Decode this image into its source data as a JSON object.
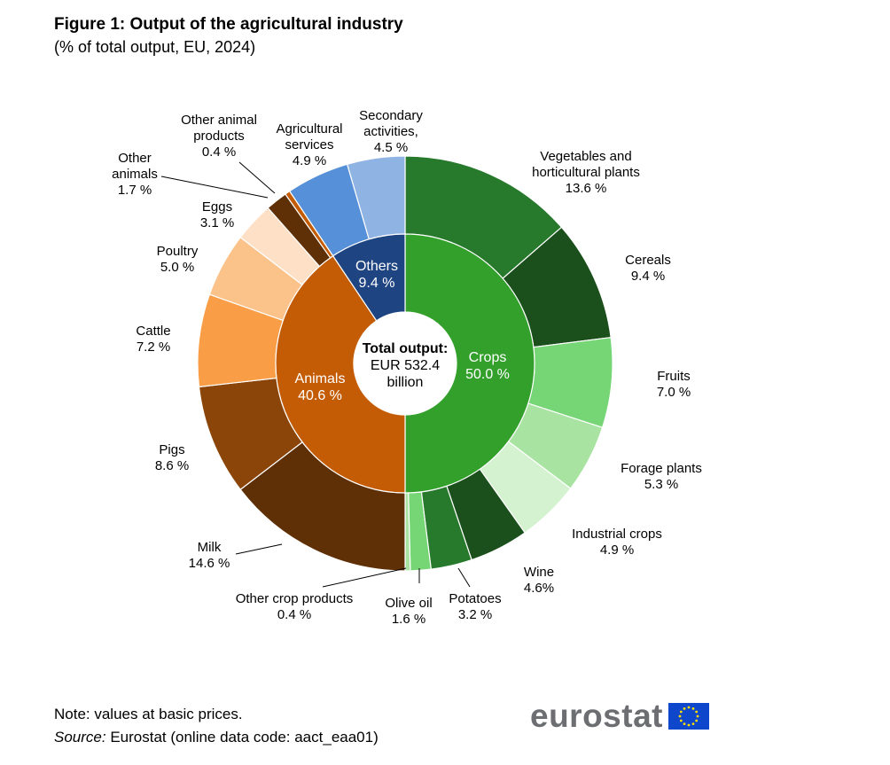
{
  "title": "Figure 1: Output of the agricultural industry",
  "subtitle": "(% of total output, EU, 2024)",
  "note": "Note: values at basic prices.",
  "source_label": "Source:",
  "source_text": " Eurostat (online data code: aact_eaa01)",
  "logo_text": "eurostat",
  "center_label": [
    "Total output:",
    "EUR 532.4",
    "billion"
  ],
  "chart_data": {
    "type": "pie",
    "subtype": "nested-donut",
    "inner": [
      {
        "name": "Crops",
        "value": 50.0,
        "label": [
          "Crops",
          "50.0 %"
        ],
        "color": "#33a02c"
      },
      {
        "name": "Animals",
        "value": 40.6,
        "label": [
          "Animals",
          "40.6 %"
        ],
        "color": "#c45c06"
      },
      {
        "name": "Others",
        "value": 9.4,
        "label": [
          "Others",
          "9.4 %"
        ],
        "color": "#1f4482"
      }
    ],
    "outer": [
      {
        "name": "Vegetables and horticultural plants",
        "value": 13.6,
        "label": [
          "Vegetables and",
          "horticultural  plants",
          "13.6 %"
        ],
        "color": "#27792c"
      },
      {
        "name": "Cereals",
        "value": 9.4,
        "label": [
          "Cereals",
          "9.4 %"
        ],
        "color": "#1b4f1c"
      },
      {
        "name": "Fruits",
        "value": 7.0,
        "label": [
          "Fruits",
          "7.0 %"
        ],
        "color": "#76d575"
      },
      {
        "name": "Forage plants",
        "value": 5.3,
        "label": [
          "Forage plants",
          "5.3 %"
        ],
        "color": "#a8e3a2"
      },
      {
        "name": "Industrial crops",
        "value": 4.9,
        "label": [
          "Industrial  crops",
          "4.9 %"
        ],
        "color": "#d4f2d0"
      },
      {
        "name": "Wine",
        "value": 4.6,
        "label": [
          "Wine",
          "4.6%"
        ],
        "color": "#1b4f1c"
      },
      {
        "name": "Potatoes",
        "value": 3.2,
        "label": [
          "Potatoes",
          "3.2 %"
        ],
        "color": "#27792c"
      },
      {
        "name": "Olive oil",
        "value": 1.6,
        "label": [
          "Olive oil",
          "1.6 %"
        ],
        "color": "#76d575"
      },
      {
        "name": "Other crop products",
        "value": 0.4,
        "label": [
          "Other crop products",
          "0.4 %"
        ],
        "color": "#a8e3a2"
      },
      {
        "name": "Milk",
        "value": 14.6,
        "label": [
          "Milk",
          "14.6 %"
        ],
        "color": "#5f3006"
      },
      {
        "name": "Pigs",
        "value": 8.6,
        "label": [
          "Pigs",
          "8.6 %"
        ],
        "color": "#8b4509"
      },
      {
        "name": "Cattle",
        "value": 7.2,
        "label": [
          "Cattle",
          "7.2 %"
        ],
        "color": "#f99d47"
      },
      {
        "name": "Poultry",
        "value": 5.0,
        "label": [
          "Poultry",
          "5.0 %"
        ],
        "color": "#fbc28a"
      },
      {
        "name": "Eggs",
        "value": 3.1,
        "label": [
          "Eggs",
          "3.1 %"
        ],
        "color": "#fde0c6"
      },
      {
        "name": "Other animals",
        "value": 1.7,
        "label": [
          "Other",
          "animals",
          "1.7 %"
        ],
        "color": "#5f3006"
      },
      {
        "name": "Other animal products",
        "value": 0.4,
        "label": [
          "Other animal",
          "products",
          "0.4 %"
        ],
        "color": "#c45c06"
      },
      {
        "name": "Agricultural services",
        "value": 4.9,
        "label": [
          "Agricultural",
          "services",
          "4.9 %"
        ],
        "color": "#5690d8"
      },
      {
        "name": "Secondary activities",
        "value": 4.5,
        "label": [
          "Secondary",
          "activities,",
          "4.5 %"
        ],
        "color": "#8fb4e3"
      }
    ]
  }
}
